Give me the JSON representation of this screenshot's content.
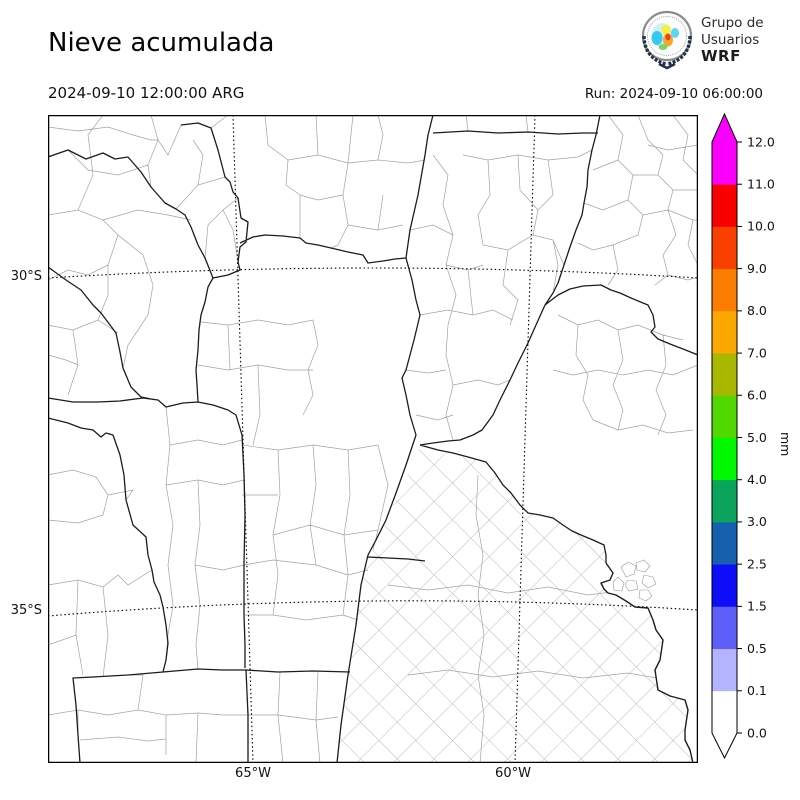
{
  "header": {
    "title": "Nieve acumulada",
    "valid_time": "2024-09-10 12:00:00 ARG",
    "run": "Run: 2024-09-10 06:00:00",
    "logo": {
      "line1": "Grupo de",
      "line2": "Usuarios",
      "line3": "WRF"
    }
  },
  "map": {
    "lat_ticks": [
      "30°S",
      "35°S"
    ],
    "lon_ticks": [
      "65°W",
      "60°W"
    ]
  },
  "colorbar": {
    "unit": "mm",
    "tick_labels": [
      "0.0",
      "0.1",
      "0.5",
      "1.5",
      "2.5",
      "3.0",
      "4.0",
      "5.0",
      "6.0",
      "7.0",
      "8.0",
      "9.0",
      "10.0",
      "11.0",
      "12.0"
    ],
    "segment_colors_bottom_to_top": [
      "#ffffff",
      "#b3b3ff",
      "#5e5ef8",
      "#0d0df8",
      "#1561ae",
      "#0ca35c",
      "#00f800",
      "#50d800",
      "#a8b800",
      "#fba800",
      "#fa7d00",
      "#fa4000",
      "#f80000",
      "#fa00fa"
    ],
    "under_arrow_color": "#ffffff",
    "over_arrow_color": "#fa00fa"
  },
  "chart_data": {
    "type": "heatmap",
    "title": "Nieve acumulada",
    "units": "mm",
    "levels_mm": [
      0.0,
      0.1,
      0.5,
      1.5,
      2.5,
      3.0,
      4.0,
      5.0,
      6.0,
      7.0,
      8.0,
      9.0,
      10.0,
      11.0,
      12.0
    ],
    "gridlines": {
      "parallels": [
        "30°S",
        "35°S"
      ],
      "meridians": [
        "65°W",
        "60°W"
      ],
      "style": "dotted"
    },
    "field_summary": "Accumulated snow field is zero everywhere shown: whole map area rendered white (< 0.1 mm).",
    "legend_position": "right colorbar with pointed over/under arrows"
  }
}
